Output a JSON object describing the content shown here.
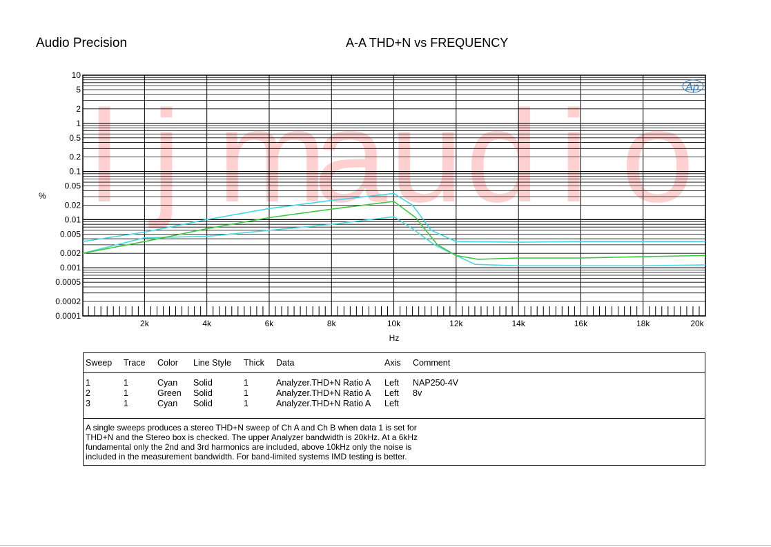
{
  "header": {
    "brand": "Audio Precision",
    "title": "A-A THD+N vs FREQUENCY",
    "watermark": [
      "l",
      "j",
      "m",
      "a",
      "u",
      "d",
      "i",
      "o"
    ],
    "logo": "Ap"
  },
  "chart_data": {
    "type": "line",
    "title": "A-A THD+N vs FREQUENCY",
    "xlabel": "Hz",
    "ylabel": "%",
    "xlim": [
      20,
      20000
    ],
    "ylim": [
      0.0001,
      10
    ],
    "yscale": "log",
    "grid": true,
    "x_ticks": [
      {
        "value": 2000,
        "label": "2k"
      },
      {
        "value": 4000,
        "label": "4k"
      },
      {
        "value": 6000,
        "label": "6k"
      },
      {
        "value": 8000,
        "label": "8k"
      },
      {
        "value": 10000,
        "label": "10k"
      },
      {
        "value": 12000,
        "label": "12k"
      },
      {
        "value": 14000,
        "label": "14k"
      },
      {
        "value": 16000,
        "label": "16k"
      },
      {
        "value": 18000,
        "label": "18k"
      },
      {
        "value": 20000,
        "label": "20k"
      }
    ],
    "y_ticks": [
      {
        "value": 10,
        "label": "10"
      },
      {
        "value": 5,
        "label": "5"
      },
      {
        "value": 2,
        "label": "2"
      },
      {
        "value": 1,
        "label": "1"
      },
      {
        "value": 0.5,
        "label": "0.5"
      },
      {
        "value": 0.2,
        "label": "0.2"
      },
      {
        "value": 0.1,
        "label": "0.1"
      },
      {
        "value": 0.05,
        "label": "0.05"
      },
      {
        "value": 0.02,
        "label": "0.02"
      },
      {
        "value": 0.01,
        "label": "0.01"
      },
      {
        "value": 0.005,
        "label": "0.005"
      },
      {
        "value": 0.002,
        "label": "0.002"
      },
      {
        "value": 0.001,
        "label": "0.001"
      },
      {
        "value": 0.0005,
        "label": "0.0005"
      },
      {
        "value": 0.0002,
        "label": "0.0002"
      },
      {
        "value": 0.0001,
        "label": "0.0001"
      }
    ],
    "series": [
      {
        "color": "#40d8e8",
        "x": [
          20,
          2000,
          4000,
          6000,
          8000,
          10000,
          10600,
          11200,
          12000,
          14000,
          16000,
          18000,
          20000
        ],
        "y": [
          0.0035,
          0.0055,
          0.01,
          0.017,
          0.025,
          0.035,
          0.02,
          0.006,
          0.0035,
          0.0034,
          0.0035,
          0.0035,
          0.0035
        ]
      },
      {
        "color": "#4fd8e0",
        "x": [
          20,
          2000,
          4000,
          6000,
          8000,
          10000,
          10600,
          11300,
          12000,
          12600,
          14000,
          16000,
          18000,
          20000
        ],
        "y": [
          0.002,
          0.0042,
          0.0045,
          0.006,
          0.008,
          0.0115,
          0.0065,
          0.003,
          0.0018,
          0.00118,
          0.0011,
          0.0011,
          0.0011,
          0.00115
        ]
      },
      {
        "color": "#3cc83c",
        "x": [
          20,
          2000,
          4000,
          6000,
          8000,
          10000,
          10700,
          11400,
          12000,
          12700,
          14000,
          16000,
          18000,
          20000
        ],
        "y": [
          0.002,
          0.0035,
          0.0065,
          0.011,
          0.0165,
          0.024,
          0.011,
          0.003,
          0.0018,
          0.0015,
          0.0016,
          0.0016,
          0.0017,
          0.0018
        ]
      }
    ]
  },
  "legend": {
    "headers": [
      "Sweep",
      "Trace",
      "Color",
      "Line Style",
      "Thick",
      "Data",
      "Axis",
      "Comment"
    ],
    "rows": [
      [
        "1",
        "1",
        "Cyan",
        "Solid",
        "1",
        "Analyzer.THD+N Ratio A",
        "Left",
        "NAP250-4V"
      ],
      [
        "2",
        "1",
        "Green",
        "Solid",
        "1",
        "Analyzer.THD+N Ratio A",
        "Left",
        "8v"
      ],
      [
        "3",
        "1",
        "Cyan",
        "Solid",
        "1",
        "Analyzer.THD+N Ratio A",
        "Left",
        ""
      ]
    ],
    "note_lines": [
      "A single sweeps produces a stereo THD+N sweep of Ch A and Ch B when data 1 is set for",
      "THD+N and the Stereo box is checked.  The upper Analyzer bandwidth is 20kHz.  At a 6kHz",
      "fundamental only the 2nd and 3rd harmonics are included, above 10kHz only the noise is",
      "included in the measurement bandwidth.  For band-limited systems IMD testing is better."
    ]
  }
}
